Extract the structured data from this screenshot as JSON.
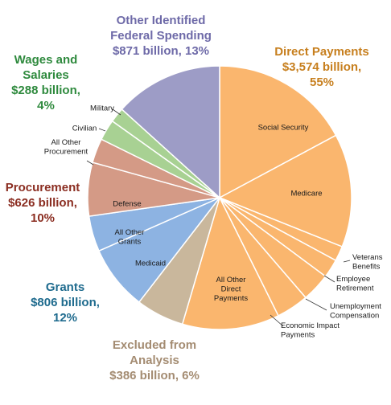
{
  "chart_data": {
    "type": "pie",
    "unit": "billion",
    "categories": [
      {
        "key": "direct",
        "name": "Direct Payments",
        "amount": "$3,574 billion,",
        "percent": "55%",
        "color": "#fab66e",
        "label_color": "#c77f1e"
      },
      {
        "key": "excluded",
        "name": "Excluded from",
        "name2": "Analysis",
        "amount": "$386 billion, 6%",
        "color": "#c9b79c",
        "label_color": "#a48c72"
      },
      {
        "key": "grants",
        "name": "Grants",
        "amount": "$806 billion,",
        "percent": "12%",
        "color": "#8db3e2",
        "label_color": "#1f6b8e"
      },
      {
        "key": "procurement",
        "name": "Procurement",
        "amount": "$626 billion,",
        "percent": "10%",
        "color": "#d49a86",
        "label_color": "#8b2e22"
      },
      {
        "key": "wages",
        "name": "Wages and",
        "name2": "Salaries",
        "amount": "$288 billion,",
        "percent": "4%",
        "color": "#a8d193",
        "label_color": "#2f8a3e"
      },
      {
        "key": "other",
        "name": "Other Identified",
        "name2": "Federal Spending",
        "amount": "$871 billion, 13%",
        "color": "#9d9cc6",
        "label_color": "#6e6aa8"
      }
    ],
    "slices": [
      {
        "label": [
          "Social Security"
        ],
        "category": "direct",
        "value": 1124
      },
      {
        "label": [
          "Medicare"
        ],
        "category": "direct",
        "value": 911
      },
      {
        "label": [
          "Veterans",
          "Benefits"
        ],
        "category": "direct",
        "value": 120
      },
      {
        "label": [
          "Employee",
          "Retirement"
        ],
        "category": "direct",
        "value": 150
      },
      {
        "label": [
          "Unemployment",
          "Compensation"
        ],
        "category": "direct",
        "value": 230
      },
      {
        "label": [
          "Economic Impact",
          "Payments"
        ],
        "category": "direct",
        "value": 260
      },
      {
        "label": [
          "All Other",
          "Direct",
          "Payments"
        ],
        "category": "direct",
        "value": 779
      },
      {
        "label": [],
        "category": "excluded",
        "value": 386
      },
      {
        "label": [
          "Medicaid"
        ],
        "category": "grants",
        "value": 520
      },
      {
        "label": [
          "All Other",
          "Grants"
        ],
        "category": "grants",
        "value": 286
      },
      {
        "label": [
          "Defense"
        ],
        "category": "procurement",
        "value": 430
      },
      {
        "label": [
          "All Other",
          "Procurement"
        ],
        "category": "procurement",
        "value": 196
      },
      {
        "label": [
          "Civilian"
        ],
        "category": "wages",
        "value": 168
      },
      {
        "label": [
          "Military"
        ],
        "category": "wages",
        "value": 120
      },
      {
        "label": [],
        "category": "other",
        "value": 871
      }
    ]
  }
}
